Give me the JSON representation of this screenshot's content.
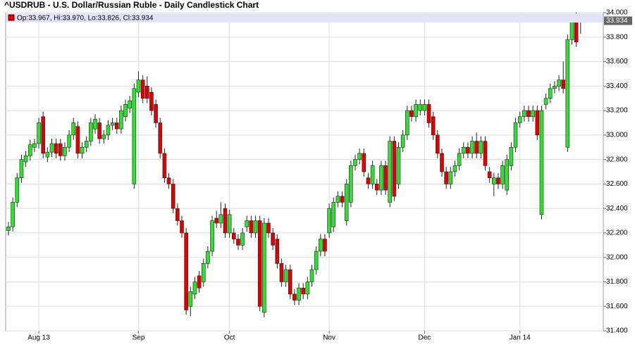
{
  "chart_data": {
    "type": "candlestick",
    "title": "^USDRUB - U.S. Dollar/Russian Ruble - Daily Candlestick Chart",
    "legend_text": "Op:33.967, Hi:33.970, Lo:33.826, Cl:33.934",
    "last_label": "33.934",
    "up_color": "#33dd33",
    "down_color": "#dd0000",
    "categories": [
      null,
      null,
      null,
      null,
      null,
      null,
      null,
      "Aug 13",
      null,
      null,
      null,
      null,
      null,
      null,
      null,
      null,
      null,
      null,
      null,
      null,
      null,
      null,
      null,
      null,
      null,
      null,
      null,
      null,
      null,
      null,
      "Sep",
      null,
      null,
      null,
      null,
      null,
      null,
      null,
      null,
      null,
      null,
      null,
      null,
      null,
      null,
      null,
      null,
      null,
      null,
      null,
      null,
      "Oct",
      null,
      null,
      null,
      null,
      null,
      null,
      null,
      null,
      null,
      null,
      null,
      null,
      null,
      null,
      null,
      null,
      null,
      null,
      null,
      null,
      null,
      null,
      "Nov",
      null,
      null,
      null,
      null,
      null,
      null,
      null,
      null,
      null,
      null,
      null,
      null,
      null,
      null,
      null,
      null,
      null,
      null,
      null,
      null,
      null,
      "Dec",
      null,
      null,
      null,
      null,
      null,
      null,
      null,
      null,
      null,
      null,
      null,
      null,
      null,
      null,
      null,
      null,
      null,
      null,
      null,
      null,
      null,
      "Jan 14",
      null,
      null,
      null,
      null,
      null,
      null,
      null,
      null,
      null,
      null,
      null,
      null,
      null,
      null
    ],
    "open": [
      32.22,
      32.25,
      32.45,
      32.65,
      32.78,
      32.83,
      32.9,
      32.93,
      33.15,
      32.82,
      32.86,
      32.93,
      32.93,
      32.83,
      32.9,
      33.0,
      33.07,
      32.85,
      32.9,
      32.95,
      33.05,
      33.1,
      32.97,
      33.0,
      33.08,
      33.1,
      33.05,
      33.15,
      33.22,
      32.6,
      33.35,
      33.45,
      33.4,
      33.35,
      33.25,
      33.1,
      32.85,
      32.65,
      32.6,
      32.4,
      32.3,
      32.2,
      31.6,
      31.7,
      31.85,
      31.8,
      31.95,
      32.05,
      32.32,
      32.28,
      32.4,
      32.2,
      32.2,
      32.15,
      32.1,
      32.25,
      32.3,
      32.2,
      32.3,
      31.55,
      32.28,
      32.2,
      32.15,
      31.95,
      31.8,
      31.9,
      31.7,
      31.65,
      31.75,
      31.7,
      31.8,
      31.9,
      32.05,
      32.15,
      32.2,
      32.25,
      32.45,
      32.5,
      32.3,
      32.45,
      32.75,
      32.8,
      32.85,
      32.65,
      32.6,
      32.6,
      32.55,
      32.75,
      32.45,
      32.95,
      32.6,
      32.9,
      33.0,
      33.2,
      33.15,
      33.2,
      33.2,
      33.25,
      33.15,
      33.0,
      32.85,
      32.7,
      32.6,
      32.7,
      32.75,
      32.85,
      32.9,
      32.85,
      32.95,
      32.85,
      32.95,
      32.7,
      32.6,
      32.65,
      32.6,
      32.55,
      32.75,
      32.9,
      33.1,
      33.15,
      33.2,
      33.15,
      33.2,
      32.35,
      33.25,
      33.3,
      33.38,
      33.4,
      33.45,
      32.9,
      33.78,
      33.97,
      33.967
    ],
    "high": [
      32.29,
      32.49,
      32.69,
      32.84,
      32.87,
      32.96,
      32.97,
      33.14,
      33.19,
      32.9,
      32.97,
      32.97,
      32.97,
      32.94,
      33.04,
      33.14,
      33.11,
      32.94,
      32.99,
      33.14,
      33.17,
      33.14,
      33.04,
      33.12,
      33.14,
      33.14,
      33.24,
      33.29,
      33.32,
      33.42,
      33.52,
      33.49,
      33.48,
      33.39,
      33.29,
      33.14,
      32.89,
      32.69,
      32.64,
      32.44,
      32.34,
      32.24,
      31.76,
      31.84,
      31.89,
      31.99,
      32.09,
      32.34,
      32.38,
      32.45,
      32.44,
      32.39,
      32.24,
      32.19,
      32.24,
      32.34,
      32.34,
      32.34,
      32.34,
      32.32,
      32.32,
      32.24,
      32.19,
      31.99,
      31.94,
      31.94,
      31.74,
      31.79,
      31.79,
      31.84,
      31.94,
      32.09,
      32.19,
      32.19,
      32.44,
      32.49,
      32.54,
      32.54,
      32.64,
      32.79,
      32.84,
      32.89,
      32.89,
      32.69,
      32.79,
      32.64,
      32.79,
      32.79,
      32.99,
      32.99,
      32.94,
      33.04,
      33.24,
      33.24,
      33.29,
      33.29,
      33.29,
      33.29,
      33.19,
      33.04,
      32.89,
      32.74,
      32.74,
      32.79,
      32.89,
      32.94,
      32.94,
      32.99,
      33.02,
      32.99,
      32.99,
      32.74,
      32.69,
      32.69,
      32.79,
      32.84,
      32.94,
      33.14,
      33.19,
      33.24,
      33.24,
      33.24,
      33.24,
      33.24,
      33.34,
      33.42,
      33.44,
      33.49,
      33.6,
      33.82,
      33.99,
      34.0,
      33.97
    ],
    "low": [
      32.18,
      32.21,
      32.41,
      32.61,
      32.74,
      32.79,
      32.86,
      32.89,
      32.81,
      32.78,
      32.82,
      32.81,
      32.79,
      32.79,
      32.86,
      32.96,
      32.81,
      32.81,
      32.86,
      32.91,
      33.01,
      32.93,
      32.93,
      32.96,
      33.04,
      33.01,
      33.01,
      33.11,
      33.18,
      32.56,
      33.31,
      33.26,
      33.26,
      33.16,
      33.06,
      32.81,
      32.61,
      32.56,
      32.36,
      32.26,
      32.16,
      31.53,
      31.52,
      31.66,
      31.71,
      31.76,
      31.91,
      32.01,
      32.24,
      32.24,
      32.16,
      32.16,
      32.11,
      32.06,
      32.06,
      32.21,
      32.16,
      32.16,
      31.56,
      31.51,
      32.16,
      32.06,
      31.91,
      31.76,
      31.76,
      31.66,
      31.61,
      31.61,
      31.66,
      31.66,
      31.76,
      31.86,
      32.01,
      32.01,
      32.16,
      32.21,
      32.41,
      32.41,
      32.26,
      32.41,
      32.71,
      32.76,
      32.66,
      32.56,
      32.56,
      32.51,
      32.51,
      32.51,
      32.41,
      32.46,
      32.56,
      32.86,
      32.96,
      33.11,
      33.11,
      33.16,
      33.16,
      33.06,
      32.96,
      32.81,
      32.66,
      32.56,
      32.56,
      32.66,
      32.71,
      32.81,
      32.81,
      32.81,
      32.81,
      32.81,
      32.71,
      32.61,
      32.5,
      32.56,
      32.56,
      32.51,
      32.71,
      32.86,
      33.06,
      33.11,
      33.11,
      33.11,
      32.96,
      32.31,
      33.21,
      33.26,
      33.34,
      33.36,
      33.34,
      32.86,
      33.74,
      33.72,
      33.826
    ],
    "close": [
      32.25,
      32.45,
      32.65,
      32.8,
      32.83,
      32.92,
      32.93,
      33.1,
      32.85,
      32.86,
      32.93,
      32.85,
      32.83,
      32.9,
      33.0,
      33.1,
      32.85,
      32.9,
      32.95,
      33.1,
      33.13,
      32.97,
      33.0,
      33.08,
      33.1,
      33.05,
      33.2,
      33.25,
      33.28,
      33.38,
      33.45,
      33.3,
      33.3,
      33.2,
      33.1,
      32.85,
      32.65,
      32.6,
      32.4,
      32.3,
      32.2,
      31.57,
      31.72,
      31.8,
      31.75,
      31.95,
      32.05,
      32.3,
      32.28,
      32.35,
      32.2,
      32.35,
      32.15,
      32.1,
      32.2,
      32.3,
      32.2,
      32.3,
      31.6,
      32.28,
      32.2,
      32.1,
      31.95,
      31.8,
      31.9,
      31.7,
      31.65,
      31.75,
      31.7,
      31.8,
      31.9,
      32.05,
      32.15,
      32.05,
      32.4,
      32.45,
      32.5,
      32.45,
      32.6,
      32.75,
      32.8,
      32.85,
      32.7,
      32.6,
      32.75,
      32.55,
      32.75,
      32.55,
      32.95,
      32.5,
      32.9,
      33.0,
      33.2,
      33.15,
      33.25,
      33.25,
      33.25,
      33.1,
      33.0,
      32.85,
      32.7,
      32.6,
      32.7,
      32.75,
      32.85,
      32.9,
      32.85,
      32.95,
      32.85,
      32.95,
      32.75,
      32.65,
      32.65,
      32.6,
      32.75,
      32.8,
      32.9,
      33.1,
      33.15,
      33.2,
      33.15,
      33.2,
      33.0,
      33.2,
      33.3,
      33.38,
      33.4,
      33.45,
      33.38,
      33.78,
      33.95,
      33.76,
      33.934
    ],
    "ylim": [
      31.4,
      34.0
    ],
    "yticks": [
      {
        "value": 31.4,
        "label": "31.400"
      },
      {
        "value": 31.6,
        "label": "31.600"
      },
      {
        "value": 31.8,
        "label": "31.800"
      },
      {
        "value": 32.0,
        "label": "32.000"
      },
      {
        "value": 32.2,
        "label": "32.200"
      },
      {
        "value": 32.4,
        "label": "32.400"
      },
      {
        "value": 32.6,
        "label": "32.600"
      },
      {
        "value": 32.8,
        "label": "32.800"
      },
      {
        "value": 33.0,
        "label": "33.000"
      },
      {
        "value": 33.2,
        "label": "33.200"
      },
      {
        "value": 33.4,
        "label": "33.400"
      },
      {
        "value": 33.6,
        "label": "33.600"
      },
      {
        "value": 33.8,
        "label": "33.800"
      },
      {
        "value": 34.0,
        "label": "34.000"
      }
    ],
    "grid": true
  }
}
